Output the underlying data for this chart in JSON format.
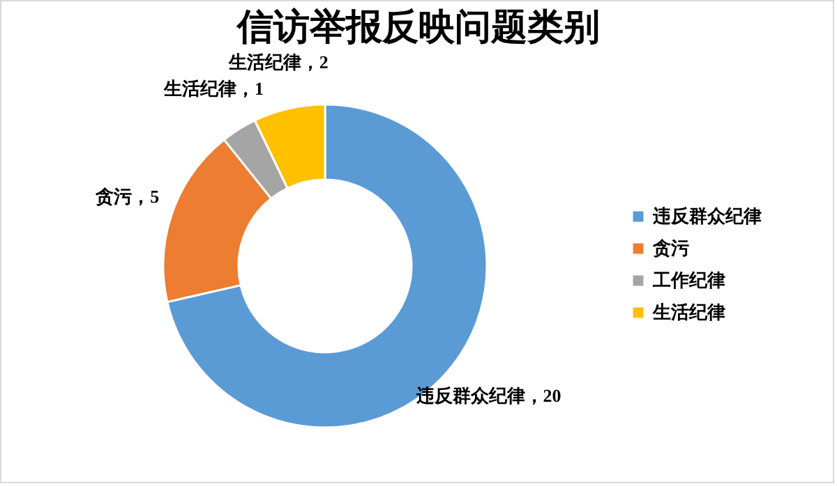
{
  "chart_data": {
    "type": "donut",
    "title": "信访举报反映问题类别",
    "categories": [
      "违反群众纪律",
      "贪污",
      "工作纪律",
      "生活纪律"
    ],
    "values": [
      20,
      5,
      1,
      2
    ],
    "colors": [
      "#5b9bd5",
      "#ed7d31",
      "#a5a5a5",
      "#ffc000"
    ],
    "value_labels": [
      "违反群众纪律，20",
      "贪污，5",
      "生活纪律，1",
      "生活纪律，2"
    ],
    "legend": "right"
  }
}
